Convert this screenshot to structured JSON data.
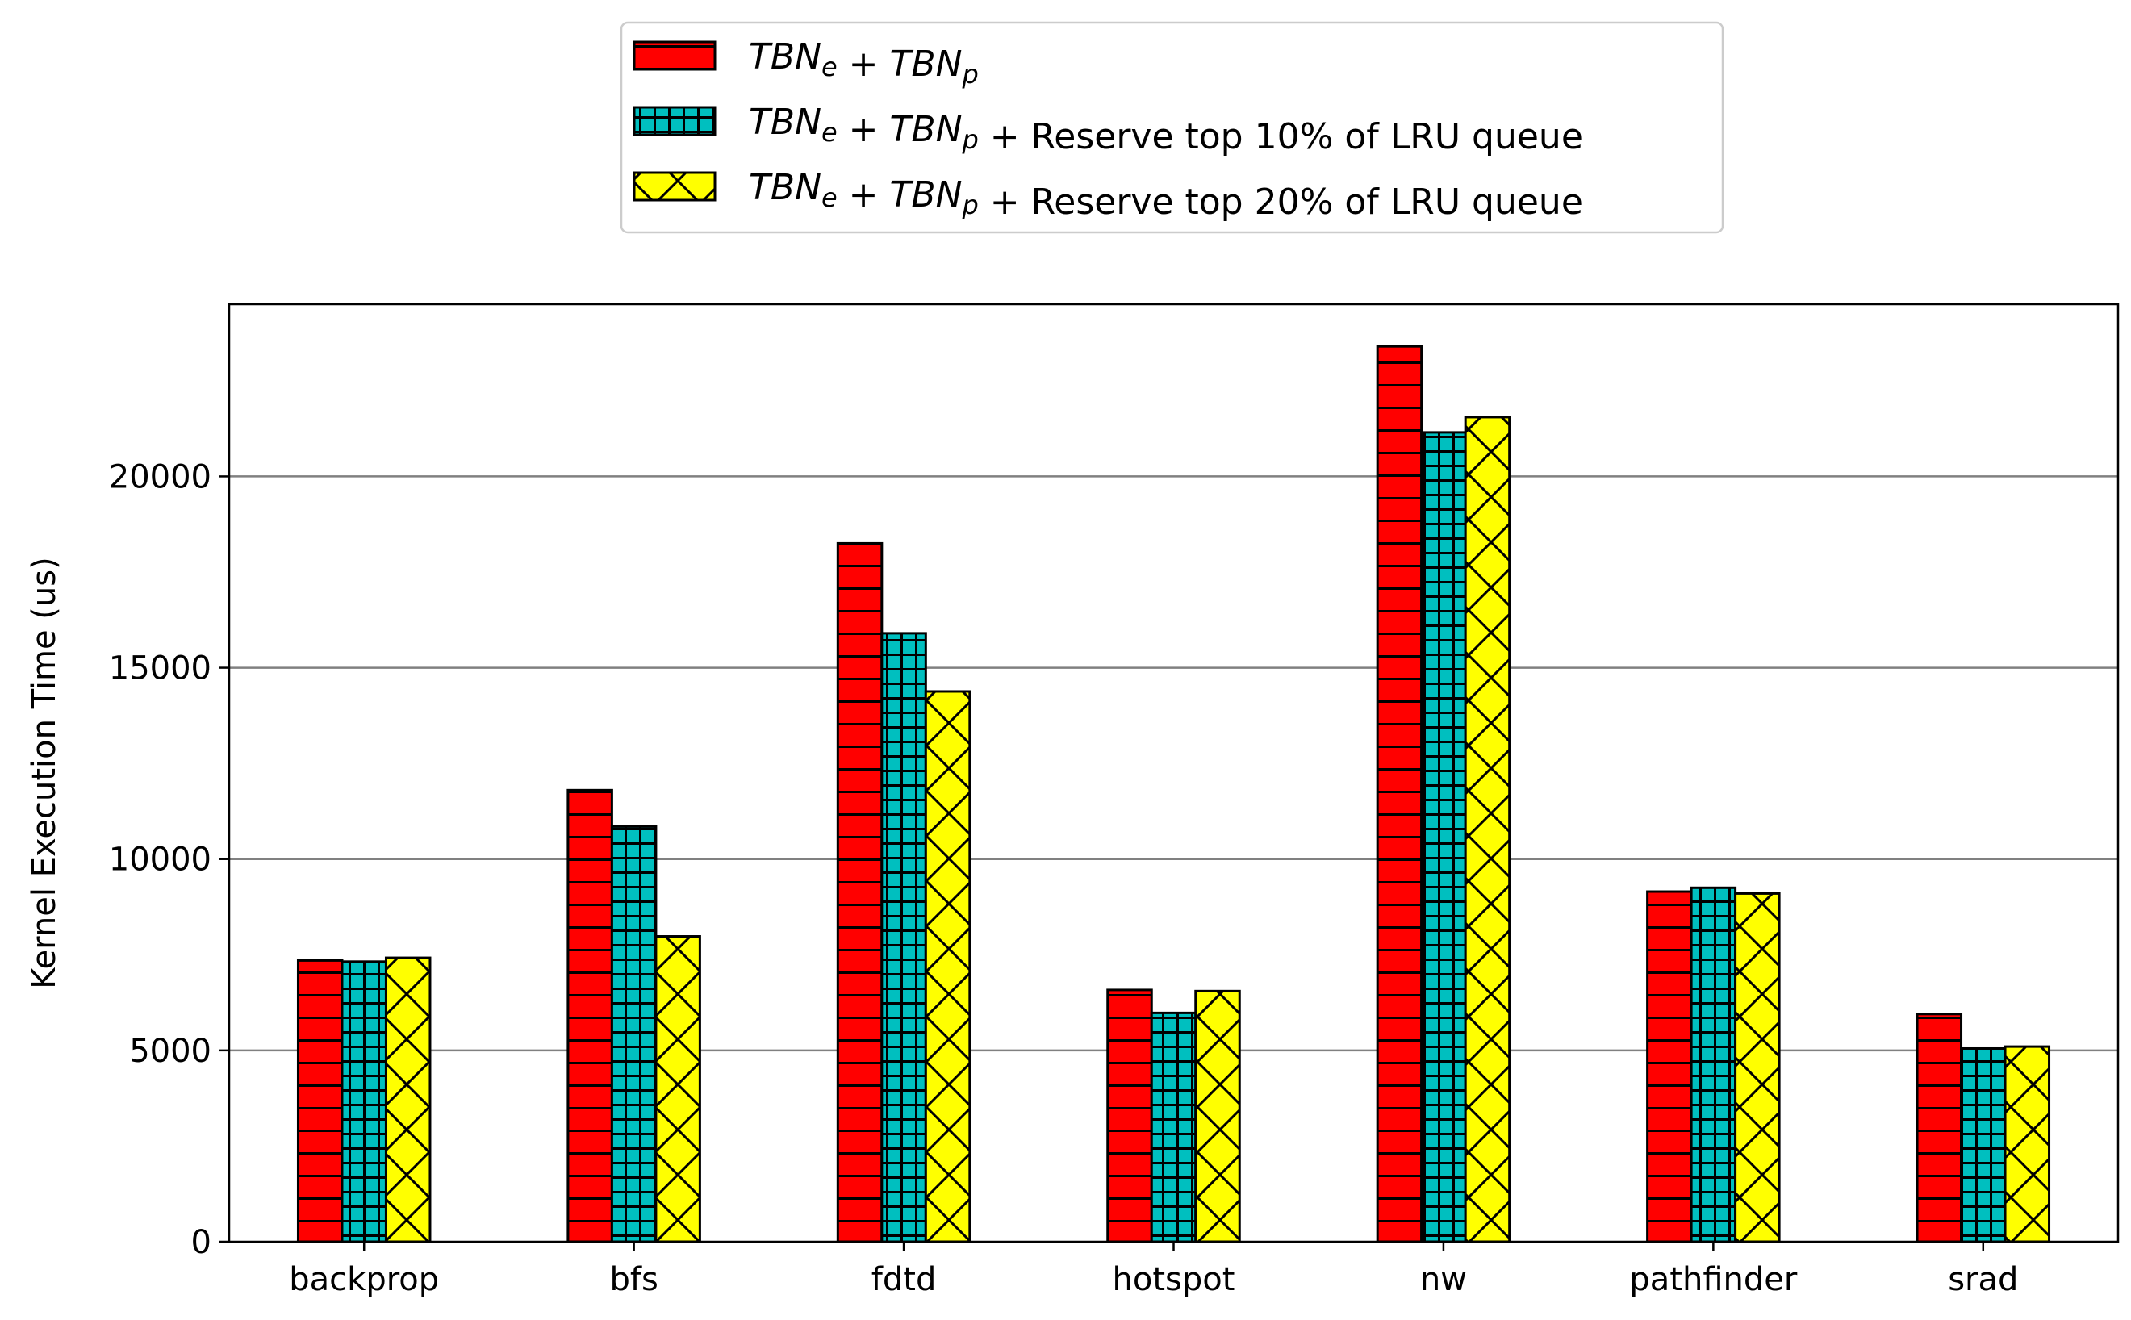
{
  "chart_data": {
    "type": "bar",
    "title": "",
    "xlabel": "",
    "ylabel": "Kernel Execution Time (us)",
    "ylim": [
      0,
      24500
    ],
    "yticks": [
      0,
      5000,
      10000,
      15000,
      20000
    ],
    "grid": "horizontal",
    "legend_position": "top-center",
    "categories": [
      "backprop",
      "bfs",
      "fdtd",
      "hotspot",
      "nw",
      "pathfinder",
      "srad"
    ],
    "series": [
      {
        "name": "TBNe + TBNp",
        "label_main": "TBN",
        "label_sub1": "e",
        "label_mid": " + TBN",
        "label_sub2": "p",
        "label_rest": "",
        "color": "#ff0000",
        "pattern": "horizontal-lines",
        "values": [
          7350,
          11800,
          18250,
          6580,
          23400,
          9150,
          5950
        ]
      },
      {
        "name": "TBNe + TBNp + Reserve top 10% of LRU queue",
        "label_main": "TBN",
        "label_sub1": "e",
        "label_mid": " + TBN",
        "label_sub2": "p",
        "label_rest": " + Reserve top 10% of LRU queue",
        "color": "#00bfbf",
        "pattern": "grid",
        "values": [
          7320,
          10850,
          15900,
          5980,
          21150,
          9250,
          5050
        ]
      },
      {
        "name": "TBNe + TBNp + Reserve top 20% of LRU queue",
        "label_main": "TBN",
        "label_sub1": "e",
        "label_mid": " + TBN",
        "label_sub2": "p",
        "label_rest": " + Reserve top 20% of LRU queue",
        "color": "#ffff00",
        "pattern": "crosshatch",
        "values": [
          7420,
          7980,
          14380,
          6550,
          21550,
          9100,
          5100
        ]
      }
    ]
  }
}
